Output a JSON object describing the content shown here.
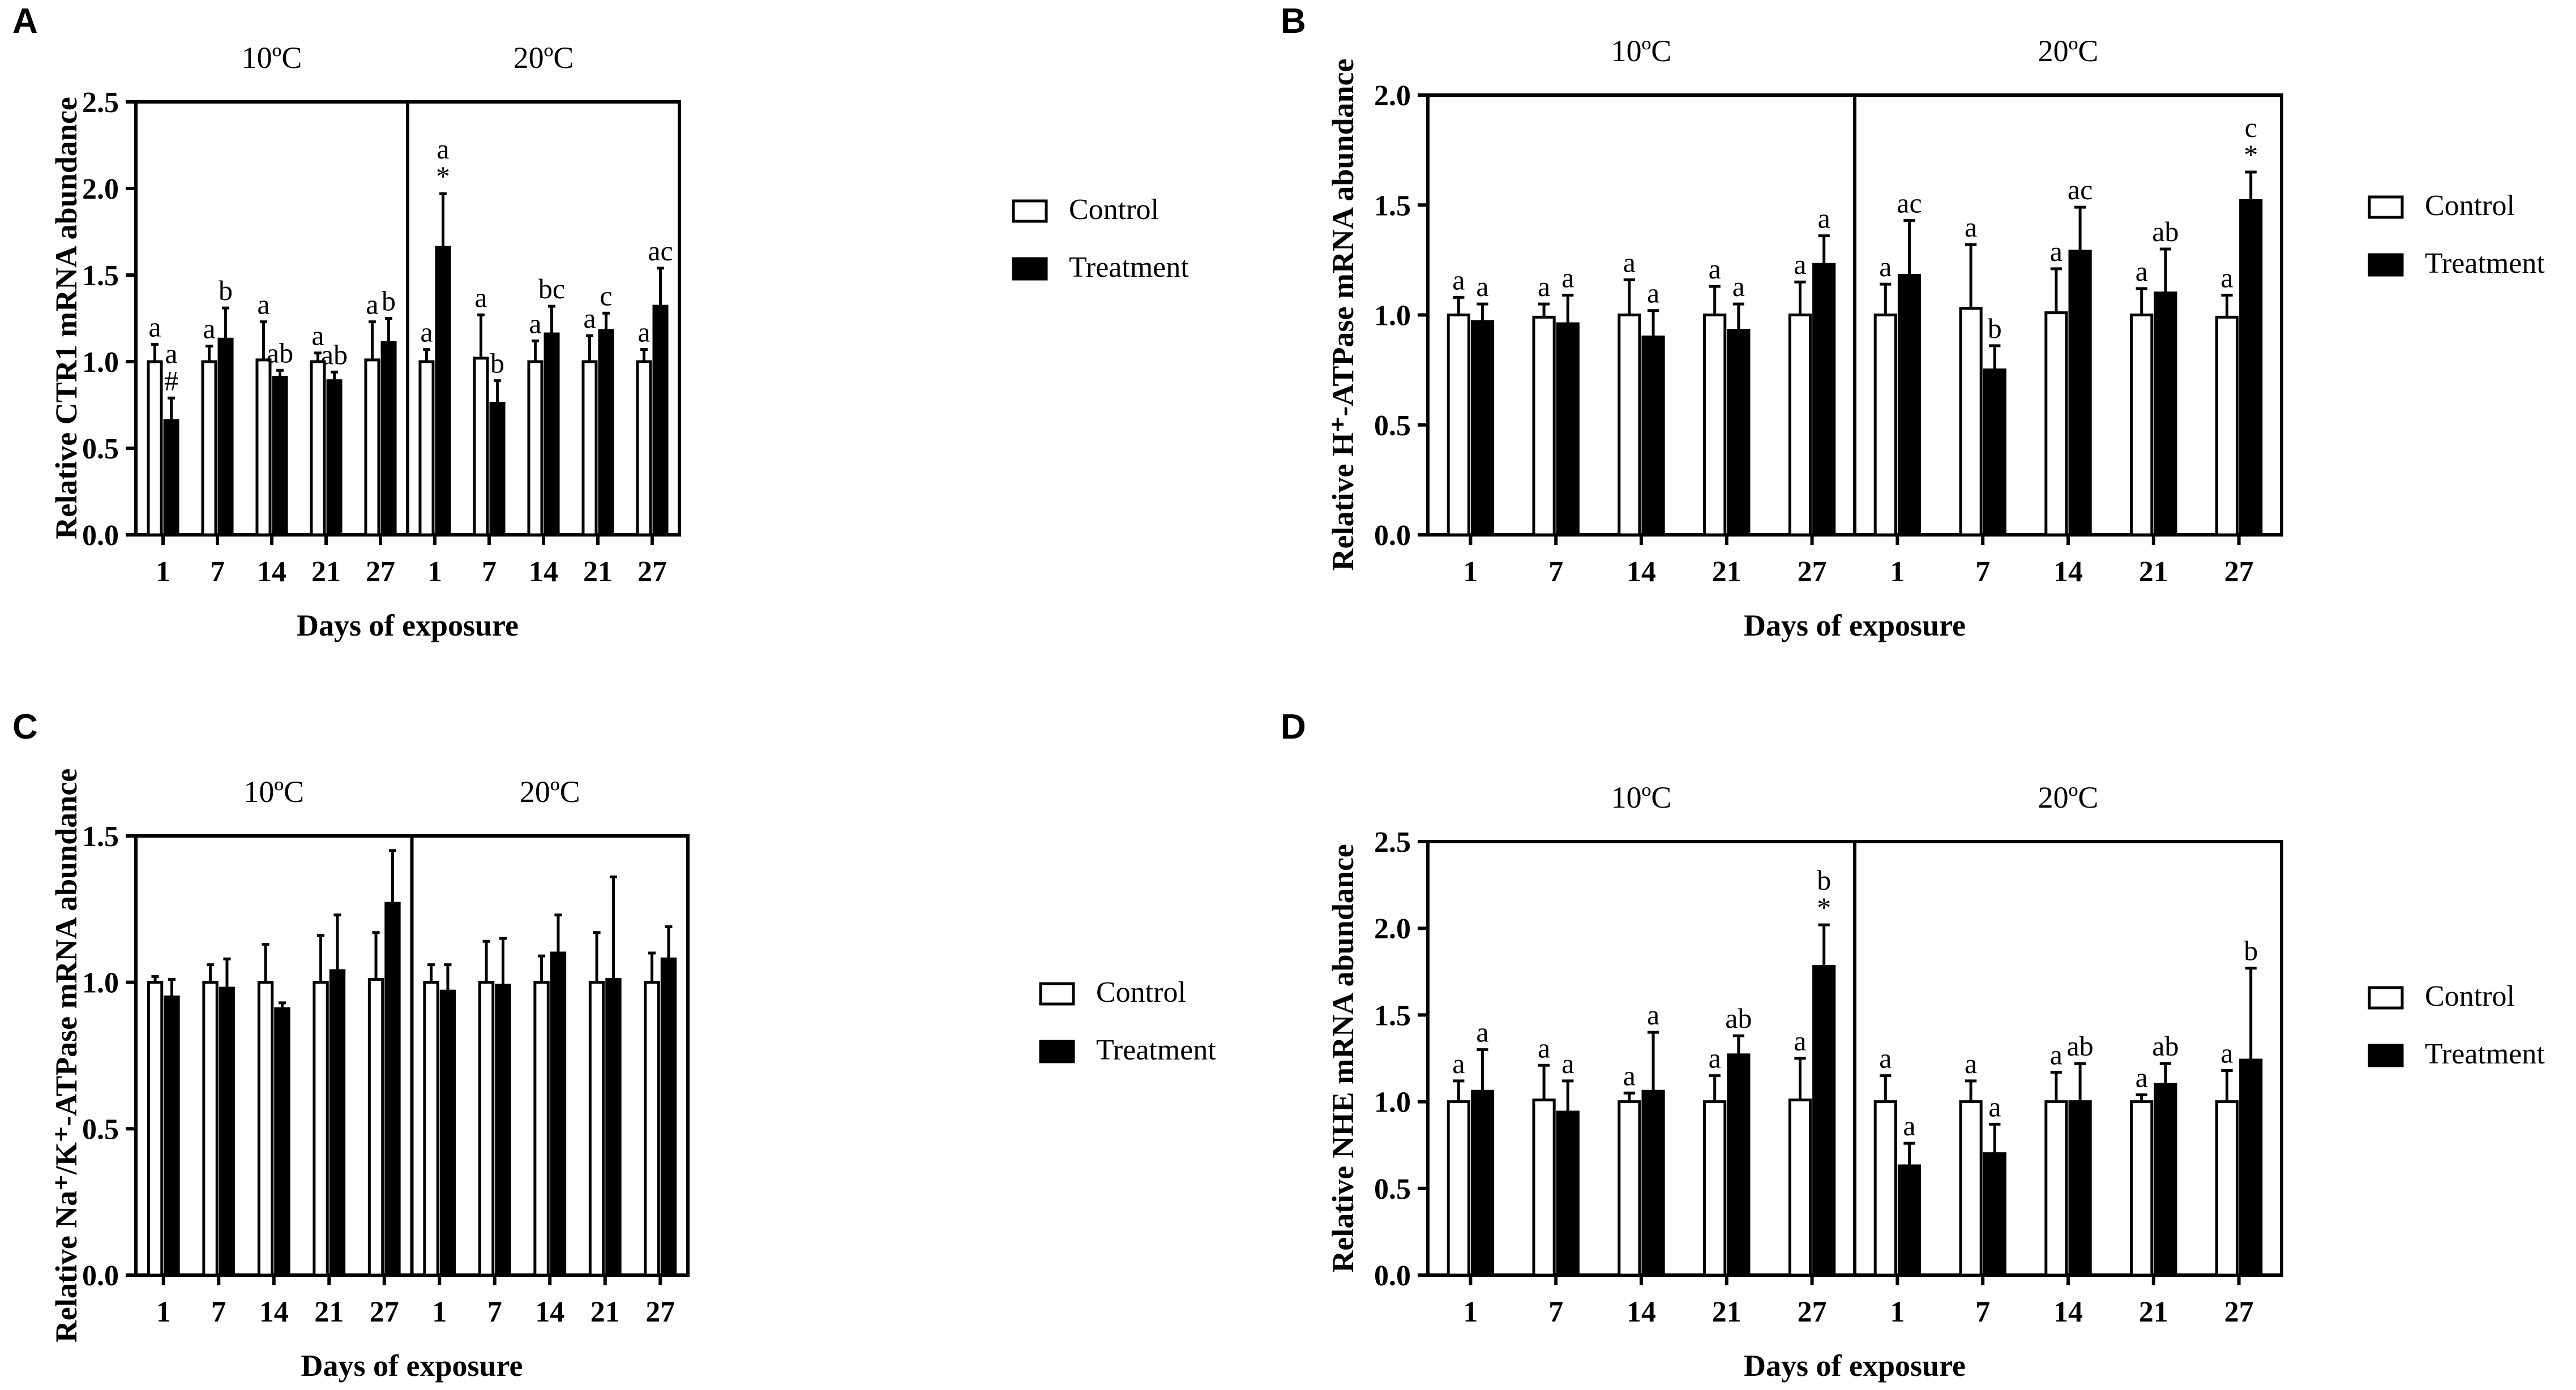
{
  "chart_data": [
    {
      "type": "bar",
      "panel": "A",
      "ylabel": "Relative CTR1 mRNA abundance",
      "xlabel": "Days of exposure",
      "ylim": [
        0,
        2.5
      ],
      "yticks": [
        "0.0",
        "0.5",
        "1.0",
        "1.5",
        "2.0",
        "2.5"
      ],
      "groups": [
        "10ºC",
        "20ºC"
      ],
      "categories": [
        "1",
        "7",
        "14",
        "21",
        "27",
        "1",
        "7",
        "14",
        "21",
        "27"
      ],
      "series": [
        {
          "name": "Control",
          "values": [
            1.0,
            1.0,
            1.01,
            1.0,
            1.01,
            1.0,
            1.02,
            1.0,
            1.0,
            1.0
          ],
          "errors": [
            0.1,
            0.09,
            0.22,
            0.05,
            0.22,
            0.07,
            0.25,
            0.12,
            0.15,
            0.07
          ],
          "labels": [
            "a",
            "a",
            "a",
            "a",
            "a",
            "a",
            "a",
            "a",
            "a",
            "a"
          ]
        },
        {
          "name": "Treatment",
          "values": [
            0.66,
            1.13,
            0.91,
            0.89,
            1.11,
            1.66,
            0.76,
            1.16,
            1.18,
            1.32
          ],
          "errors": [
            0.13,
            0.18,
            0.04,
            0.05,
            0.14,
            0.31,
            0.13,
            0.16,
            0.1,
            0.22
          ],
          "labels": [
            "a\n#",
            "b",
            "ab",
            "ab",
            "b",
            "a\n*",
            "b",
            "bc",
            "c",
            "ac"
          ]
        }
      ]
    },
    {
      "type": "bar",
      "panel": "B",
      "ylabel": "Relative H⁺-ATPase mRNA abundance",
      "xlabel": "Days of exposure",
      "ylim": [
        0,
        2.0
      ],
      "yticks": [
        "0.0",
        "0.5",
        "1.0",
        "1.5",
        "2.0"
      ],
      "groups": [
        "10ºC",
        "20ºC"
      ],
      "categories": [
        "1",
        "7",
        "14",
        "21",
        "27",
        "1",
        "7",
        "14",
        "21",
        "27"
      ],
      "series": [
        {
          "name": "Control",
          "values": [
            1.0,
            0.99,
            1.0,
            1.0,
            1.0,
            1.0,
            1.03,
            1.01,
            1.0,
            0.99
          ],
          "errors": [
            0.08,
            0.06,
            0.16,
            0.13,
            0.15,
            0.14,
            0.29,
            0.2,
            0.12,
            0.1
          ],
          "labels": [
            "a",
            "a",
            "a",
            "a",
            "a",
            "a",
            "a",
            "a",
            "a",
            "a"
          ]
        },
        {
          "name": "Treatment",
          "values": [
            0.97,
            0.96,
            0.9,
            0.93,
            1.23,
            1.18,
            0.75,
            1.29,
            1.1,
            1.52
          ],
          "errors": [
            0.08,
            0.13,
            0.12,
            0.12,
            0.13,
            0.25,
            0.11,
            0.2,
            0.2,
            0.13
          ],
          "labels": [
            "a",
            "a",
            "a",
            "a",
            "a",
            "ac",
            "b",
            "ac",
            "ab",
            "c\n*"
          ]
        }
      ]
    },
    {
      "type": "bar",
      "panel": "C",
      "ylabel": "Relative Na⁺/K⁺-ATPase mRNA abundance",
      "xlabel": "Days of exposure",
      "ylim": [
        0,
        1.5
      ],
      "yticks": [
        "0.0",
        "0.5",
        "1.0",
        "1.5"
      ],
      "groups": [
        "10ºC",
        "20ºC"
      ],
      "categories": [
        "1",
        "7",
        "14",
        "21",
        "27",
        "1",
        "7",
        "14",
        "21",
        "27"
      ],
      "series": [
        {
          "name": "Control",
          "values": [
            1.0,
            1.0,
            1.0,
            1.0,
            1.01,
            1.0,
            1.0,
            1.0,
            1.0,
            1.0
          ],
          "errors": [
            0.02,
            0.06,
            0.13,
            0.16,
            0.16,
            0.06,
            0.14,
            0.09,
            0.17,
            0.1
          ],
          "labels": [
            "",
            "",
            "",
            "",
            "",
            "",
            "",
            "",
            "",
            ""
          ]
        },
        {
          "name": "Treatment",
          "values": [
            0.95,
            0.98,
            0.91,
            1.04,
            1.27,
            0.97,
            0.99,
            1.1,
            1.01,
            1.08
          ],
          "errors": [
            0.06,
            0.1,
            0.02,
            0.19,
            0.18,
            0.09,
            0.16,
            0.13,
            0.35,
            0.11
          ],
          "labels": [
            "",
            "",
            "",
            "",
            "",
            "",
            "",
            "",
            "",
            ""
          ]
        }
      ]
    },
    {
      "type": "bar",
      "panel": "D",
      "ylabel": "Relative NHE mRNA abundance",
      "xlabel": "Days of exposure",
      "ylim": [
        0,
        2.5
      ],
      "yticks": [
        "0.0",
        "0.5",
        "1.0",
        "1.5",
        "2.0",
        "2.5"
      ],
      "groups": [
        "10ºC",
        "20ºC"
      ],
      "categories": [
        "1",
        "7",
        "14",
        "21",
        "27",
        "1",
        "7",
        "14",
        "21",
        "27"
      ],
      "series": [
        {
          "name": "Control",
          "values": [
            1.0,
            1.01,
            1.0,
            1.0,
            1.01,
            1.0,
            1.0,
            1.0,
            1.0,
            1.0
          ],
          "errors": [
            0.12,
            0.2,
            0.05,
            0.15,
            0.24,
            0.15,
            0.12,
            0.17,
            0.04,
            0.18
          ],
          "labels": [
            "a",
            "a",
            "a",
            "a",
            "a",
            "a",
            "a",
            "a",
            "a",
            "a"
          ]
        },
        {
          "name": "Treatment",
          "values": [
            1.06,
            0.94,
            1.06,
            1.27,
            1.78,
            0.63,
            0.7,
            1.0,
            1.1,
            1.24
          ],
          "errors": [
            0.24,
            0.18,
            0.34,
            0.11,
            0.24,
            0.13,
            0.17,
            0.22,
            0.12,
            0.53
          ],
          "labels": [
            "a",
            "a",
            "a",
            "ab",
            "b\n*",
            "a",
            "a",
            "ab",
            "ab",
            "b"
          ]
        }
      ]
    }
  ],
  "legend": {
    "control": "Control",
    "treatment": "Treatment"
  },
  "colors": {
    "control_fill": "#ffffff",
    "treatment_fill": "#000000",
    "stroke": "#000000"
  }
}
